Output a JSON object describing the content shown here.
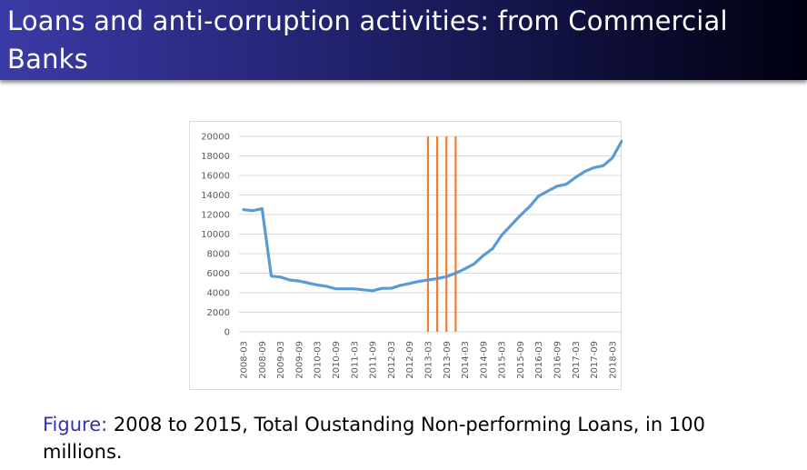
{
  "slide": {
    "title": "Loans and anti-corruption activities: from Commercial Banks"
  },
  "caption": {
    "label": "Figure:",
    "text": "2008 to 2015, Total Oustanding Non-performing Loans, in 100 millions."
  },
  "colors": {
    "series_line": "#5b9bd5",
    "vertical_markers": "#ed7d31",
    "gridline": "#d9d9d9",
    "tick_text": "#595959",
    "caption_label": "#3333b2"
  },
  "chart_data": {
    "type": "line",
    "title": "",
    "xlabel": "",
    "ylabel": "",
    "ylim": [
      0,
      20000
    ],
    "yticks": [
      0,
      2000,
      4000,
      6000,
      8000,
      10000,
      12000,
      14000,
      16000,
      18000,
      20000
    ],
    "x_tick_labels": [
      "2008-03",
      "2008-09",
      "2009-03",
      "2009-09",
      "2010-03",
      "2010-09",
      "2011-03",
      "2011-09",
      "2012-03",
      "2012-09",
      "2013-03",
      "2013-09",
      "2014-03",
      "2014-09",
      "2015-03",
      "2015-09",
      "2016-03",
      "2016-09",
      "2017-03",
      "2017-09",
      "2018-03"
    ],
    "x": [
      "2008-03",
      "2008-06",
      "2008-09",
      "2008-12",
      "2009-03",
      "2009-06",
      "2009-09",
      "2009-12",
      "2010-03",
      "2010-06",
      "2010-09",
      "2010-12",
      "2011-03",
      "2011-06",
      "2011-09",
      "2011-12",
      "2012-03",
      "2012-06",
      "2012-09",
      "2012-12",
      "2013-03",
      "2013-06",
      "2013-09",
      "2013-12",
      "2014-03",
      "2014-06",
      "2014-09",
      "2014-12",
      "2015-03",
      "2015-06",
      "2015-09",
      "2015-12",
      "2016-03",
      "2016-06",
      "2016-09",
      "2016-12",
      "2017-03",
      "2017-06",
      "2017-09",
      "2017-12",
      "2018-03",
      "2018-06"
    ],
    "series": [
      {
        "values": [
          12500,
          12400,
          12600,
          5700,
          5600,
          5300,
          5200,
          5000,
          4800,
          4650,
          4400,
          4400,
          4400,
          4300,
          4200,
          4450,
          4450,
          4750,
          4950,
          5150,
          5300,
          5450,
          5650,
          6000,
          6450,
          6950,
          7800,
          8500,
          9900,
          10900,
          11900,
          12800,
          13900,
          14400,
          14900,
          15100,
          15800,
          16400,
          16800,
          17000,
          17800,
          19500
        ]
      }
    ],
    "vertical_markers": [
      "2013-03",
      "2013-06",
      "2013-09",
      "2013-12"
    ],
    "grid": true,
    "legend": "none"
  }
}
